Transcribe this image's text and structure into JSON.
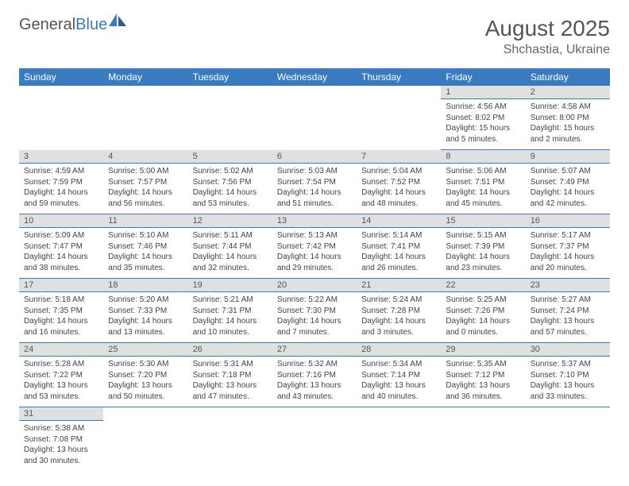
{
  "logo": {
    "text1": "General",
    "text2": "Blue"
  },
  "title": "August 2025",
  "location": "Shchastia, Ukraine",
  "colors": {
    "header_bg": "#3a7bc0",
    "header_fg": "#ffffff",
    "daynum_bg": "#e0e0e0",
    "text": "#444444",
    "rule": "#3a7bc0"
  },
  "dayNames": [
    "Sunday",
    "Monday",
    "Tuesday",
    "Wednesday",
    "Thursday",
    "Friday",
    "Saturday"
  ],
  "weeks": [
    [
      null,
      null,
      null,
      null,
      null,
      {
        "n": "1",
        "sr": "Sunrise: 4:56 AM",
        "ss": "Sunset: 8:02 PM",
        "dl": "Daylight: 15 hours and 5 minutes."
      },
      {
        "n": "2",
        "sr": "Sunrise: 4:58 AM",
        "ss": "Sunset: 8:00 PM",
        "dl": "Daylight: 15 hours and 2 minutes."
      }
    ],
    [
      {
        "n": "3",
        "sr": "Sunrise: 4:59 AM",
        "ss": "Sunset: 7:59 PM",
        "dl": "Daylight: 14 hours and 59 minutes."
      },
      {
        "n": "4",
        "sr": "Sunrise: 5:00 AM",
        "ss": "Sunset: 7:57 PM",
        "dl": "Daylight: 14 hours and 56 minutes."
      },
      {
        "n": "5",
        "sr": "Sunrise: 5:02 AM",
        "ss": "Sunset: 7:56 PM",
        "dl": "Daylight: 14 hours and 53 minutes."
      },
      {
        "n": "6",
        "sr": "Sunrise: 5:03 AM",
        "ss": "Sunset: 7:54 PM",
        "dl": "Daylight: 14 hours and 51 minutes."
      },
      {
        "n": "7",
        "sr": "Sunrise: 5:04 AM",
        "ss": "Sunset: 7:52 PM",
        "dl": "Daylight: 14 hours and 48 minutes."
      },
      {
        "n": "8",
        "sr": "Sunrise: 5:06 AM",
        "ss": "Sunset: 7:51 PM",
        "dl": "Daylight: 14 hours and 45 minutes."
      },
      {
        "n": "9",
        "sr": "Sunrise: 5:07 AM",
        "ss": "Sunset: 7:49 PM",
        "dl": "Daylight: 14 hours and 42 minutes."
      }
    ],
    [
      {
        "n": "10",
        "sr": "Sunrise: 5:09 AM",
        "ss": "Sunset: 7:47 PM",
        "dl": "Daylight: 14 hours and 38 minutes."
      },
      {
        "n": "11",
        "sr": "Sunrise: 5:10 AM",
        "ss": "Sunset: 7:46 PM",
        "dl": "Daylight: 14 hours and 35 minutes."
      },
      {
        "n": "12",
        "sr": "Sunrise: 5:11 AM",
        "ss": "Sunset: 7:44 PM",
        "dl": "Daylight: 14 hours and 32 minutes."
      },
      {
        "n": "13",
        "sr": "Sunrise: 5:13 AM",
        "ss": "Sunset: 7:42 PM",
        "dl": "Daylight: 14 hours and 29 minutes."
      },
      {
        "n": "14",
        "sr": "Sunrise: 5:14 AM",
        "ss": "Sunset: 7:41 PM",
        "dl": "Daylight: 14 hours and 26 minutes."
      },
      {
        "n": "15",
        "sr": "Sunrise: 5:15 AM",
        "ss": "Sunset: 7:39 PM",
        "dl": "Daylight: 14 hours and 23 minutes."
      },
      {
        "n": "16",
        "sr": "Sunrise: 5:17 AM",
        "ss": "Sunset: 7:37 PM",
        "dl": "Daylight: 14 hours and 20 minutes."
      }
    ],
    [
      {
        "n": "17",
        "sr": "Sunrise: 5:18 AM",
        "ss": "Sunset: 7:35 PM",
        "dl": "Daylight: 14 hours and 16 minutes."
      },
      {
        "n": "18",
        "sr": "Sunrise: 5:20 AM",
        "ss": "Sunset: 7:33 PM",
        "dl": "Daylight: 14 hours and 13 minutes."
      },
      {
        "n": "19",
        "sr": "Sunrise: 5:21 AM",
        "ss": "Sunset: 7:31 PM",
        "dl": "Daylight: 14 hours and 10 minutes."
      },
      {
        "n": "20",
        "sr": "Sunrise: 5:22 AM",
        "ss": "Sunset: 7:30 PM",
        "dl": "Daylight: 14 hours and 7 minutes."
      },
      {
        "n": "21",
        "sr": "Sunrise: 5:24 AM",
        "ss": "Sunset: 7:28 PM",
        "dl": "Daylight: 14 hours and 3 minutes."
      },
      {
        "n": "22",
        "sr": "Sunrise: 5:25 AM",
        "ss": "Sunset: 7:26 PM",
        "dl": "Daylight: 14 hours and 0 minutes."
      },
      {
        "n": "23",
        "sr": "Sunrise: 5:27 AM",
        "ss": "Sunset: 7:24 PM",
        "dl": "Daylight: 13 hours and 57 minutes."
      }
    ],
    [
      {
        "n": "24",
        "sr": "Sunrise: 5:28 AM",
        "ss": "Sunset: 7:22 PM",
        "dl": "Daylight: 13 hours and 53 minutes."
      },
      {
        "n": "25",
        "sr": "Sunrise: 5:30 AM",
        "ss": "Sunset: 7:20 PM",
        "dl": "Daylight: 13 hours and 50 minutes."
      },
      {
        "n": "26",
        "sr": "Sunrise: 5:31 AM",
        "ss": "Sunset: 7:18 PM",
        "dl": "Daylight: 13 hours and 47 minutes."
      },
      {
        "n": "27",
        "sr": "Sunrise: 5:32 AM",
        "ss": "Sunset: 7:16 PM",
        "dl": "Daylight: 13 hours and 43 minutes."
      },
      {
        "n": "28",
        "sr": "Sunrise: 5:34 AM",
        "ss": "Sunset: 7:14 PM",
        "dl": "Daylight: 13 hours and 40 minutes."
      },
      {
        "n": "29",
        "sr": "Sunrise: 5:35 AM",
        "ss": "Sunset: 7:12 PM",
        "dl": "Daylight: 13 hours and 36 minutes."
      },
      {
        "n": "30",
        "sr": "Sunrise: 5:37 AM",
        "ss": "Sunset: 7:10 PM",
        "dl": "Daylight: 13 hours and 33 minutes."
      }
    ],
    [
      {
        "n": "31",
        "sr": "Sunrise: 5:38 AM",
        "ss": "Sunset: 7:08 PM",
        "dl": "Daylight: 13 hours and 30 minutes."
      },
      null,
      null,
      null,
      null,
      null,
      null
    ]
  ]
}
